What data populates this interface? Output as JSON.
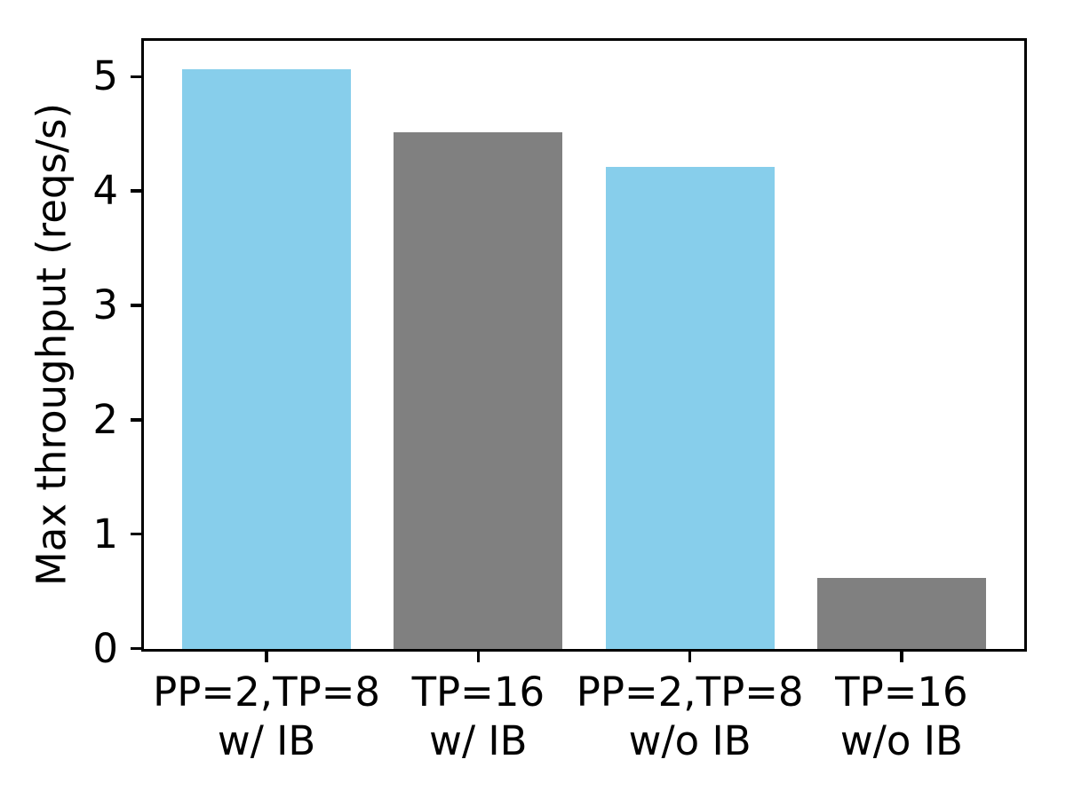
{
  "figure": {
    "background": "#ffffff",
    "axis_color": "#000000",
    "text_color": "#000000"
  },
  "chart_data": {
    "type": "bar",
    "title": "",
    "xlabel": "",
    "ylabel": "Max throughput (reqs/s)",
    "categories": [
      "PP=2,TP=8\nw/ IB",
      "TP=16\nw/ IB",
      "PP=2,TP=8\nw/o IB",
      "TP=16\nw/o IB"
    ],
    "values": [
      5.06,
      4.51,
      4.21,
      0.62
    ],
    "bar_colors": [
      "#87CEEB",
      "#808080",
      "#87CEEB",
      "#808080"
    ],
    "color_legend": {
      "skyblue": "#87CEEB",
      "gray": "#808080"
    },
    "yticks": [
      0,
      1,
      2,
      3,
      4,
      5
    ],
    "ylim": [
      0,
      5.31
    ],
    "grid": false,
    "legend": "none"
  }
}
